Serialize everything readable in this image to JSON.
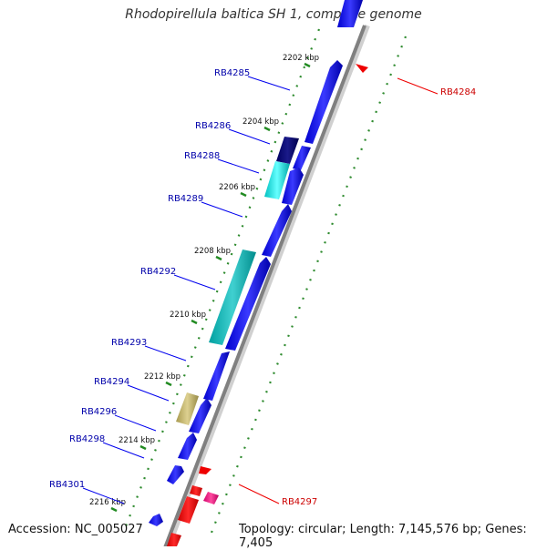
{
  "title": "Rhodopirellula baltica SH 1, complete genome",
  "accession": "Accession: NC_005027",
  "topology": "Topology: circular; Length: 7,145,576 bp; Genes: 7,405",
  "colors": {
    "backbone": "#888888",
    "forward_gene": "#0000ee",
    "highlight_gene": "#ee0000",
    "ruler_ticks": "#228b22",
    "gene_label": "#0000aa",
    "highlight_label": "#cc0000"
  },
  "kbp_ticks": [
    {
      "label": "2202 kbp",
      "kbp": 2202
    },
    {
      "label": "2204 kbp",
      "kbp": 2204
    },
    {
      "label": "2206 kbp",
      "kbp": 2206
    },
    {
      "label": "2208 kbp",
      "kbp": 2208
    },
    {
      "label": "2210 kbp",
      "kbp": 2210
    },
    {
      "label": "2212 kbp",
      "kbp": 2212
    },
    {
      "label": "2214 kbp",
      "kbp": 2214
    },
    {
      "label": "2216 kbp",
      "kbp": 2216
    }
  ],
  "gene_labels": [
    {
      "name": "RB4284",
      "highlight": true
    },
    {
      "name": "RB4285",
      "highlight": false
    },
    {
      "name": "RB4286",
      "highlight": false
    },
    {
      "name": "RB4288",
      "highlight": false
    },
    {
      "name": "RB4289",
      "highlight": false
    },
    {
      "name": "RB4292",
      "highlight": false
    },
    {
      "name": "RB4293",
      "highlight": false
    },
    {
      "name": "RB4294",
      "highlight": false
    },
    {
      "name": "RB4296",
      "highlight": false
    },
    {
      "name": "RB4298",
      "highlight": false
    },
    {
      "name": "RB4301",
      "highlight": false
    },
    {
      "name": "RB4297",
      "highlight": true
    }
  ]
}
